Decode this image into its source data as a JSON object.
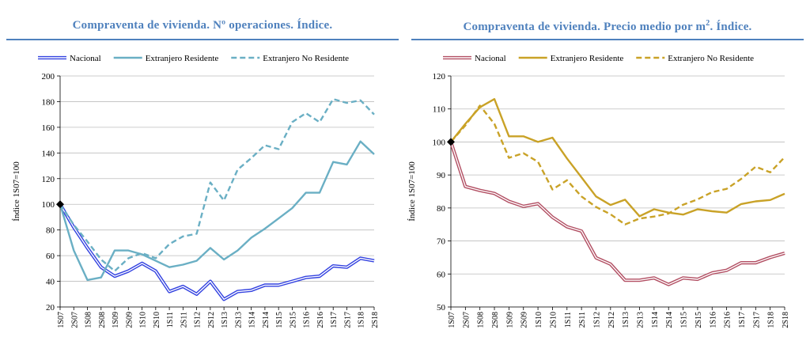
{
  "chart_data": [
    {
      "type": "line",
      "title": "Compraventa de vivienda. Nº operaciones. Índice.",
      "ylabel": "Índice 1S07=100",
      "xlabel": "",
      "ylim": [
        20,
        200
      ],
      "yticks": [
        20,
        40,
        60,
        80,
        100,
        120,
        140,
        160,
        180,
        200
      ],
      "grid": true,
      "legend": "top",
      "base_marker": {
        "x": "1S07",
        "y": 100
      },
      "categories": [
        "1S07",
        "2S07",
        "1S08",
        "2S08",
        "1S09",
        "2S09",
        "1S10",
        "2S10",
        "1S11",
        "2S11",
        "1S12",
        "2S12",
        "1S13",
        "2S13",
        "1S14",
        "2S14",
        "1S15",
        "2S15",
        "1S16",
        "2S16",
        "1S17",
        "2S17",
        "1S18",
        "2S18"
      ],
      "series": [
        {
          "name": "Nacional",
          "color": "#3342e0",
          "style": "double",
          "values": [
            100,
            82,
            66,
            51,
            44,
            48,
            54,
            48,
            32,
            36,
            30,
            40,
            26,
            32,
            33,
            37,
            37,
            40,
            43,
            44,
            52,
            51,
            58,
            56
          ]
        },
        {
          "name": "Extranjero Residente",
          "color": "#6aafc4",
          "style": "solid",
          "values": [
            100,
            64,
            41,
            43,
            64,
            64,
            61,
            56,
            51,
            53,
            56,
            66,
            57,
            64,
            74,
            81,
            89,
            97,
            109,
            109,
            133,
            131,
            149,
            139
          ]
        },
        {
          "name": "Extranjero No Residente",
          "color": "#6aafc4",
          "style": "dashed",
          "values": [
            100,
            84,
            71,
            57,
            48,
            58,
            62,
            58,
            69,
            75,
            77,
            117,
            103,
            127,
            136,
            146,
            143,
            164,
            171,
            164,
            182,
            179,
            181,
            170
          ]
        }
      ]
    },
    {
      "type": "line",
      "title": "Compraventa de vivienda. Precio medio por m",
      "title_sup": "2",
      "title_suffix": ". Índice.",
      "ylabel": "Índice 1S07=100",
      "xlabel": "",
      "ylim": [
        50,
        120
      ],
      "yticks": [
        50,
        60,
        70,
        80,
        90,
        100,
        110,
        120
      ],
      "grid": true,
      "legend": "top",
      "base_marker": {
        "x": "1S07",
        "y": 100
      },
      "categories": [
        "1S07",
        "2S07",
        "1S08",
        "2S08",
        "1S09",
        "2S09",
        "1S10",
        "2S10",
        "1S11",
        "2S11",
        "1S12",
        "2S12",
        "1S13",
        "2S13",
        "1S14",
        "2S14",
        "1S15",
        "2S15",
        "1S16",
        "2S16",
        "1S17",
        "2S17",
        "1S18",
        "2S18"
      ],
      "series": [
        {
          "name": "Nacional",
          "color": "#b24f63",
          "style": "double",
          "values": [
            100,
            86.5,
            85.3,
            84.4,
            82.0,
            80.5,
            81.3,
            77.2,
            74.3,
            73.0,
            64.9,
            63.0,
            58.1,
            58.1,
            58.8,
            56.8,
            58.8,
            58.4,
            60.3,
            61.1,
            63.4,
            63.4,
            65.0,
            66.3
          ]
        },
        {
          "name": "Extranjero Residente",
          "color": "#c9a227",
          "style": "solid",
          "values": [
            100,
            105.5,
            110.5,
            113.0,
            101.7,
            101.7,
            100.0,
            101.3,
            95.0,
            89.3,
            83.5,
            80.9,
            82.5,
            77.5,
            79.6,
            78.6,
            78.0,
            79.6,
            79.0,
            78.6,
            81.2,
            82.0,
            82.4,
            84.3
          ]
        },
        {
          "name": "Extranjero No Residente",
          "color": "#c9a227",
          "style": "dashed",
          "values": [
            100,
            105.0,
            111.0,
            105.5,
            95.2,
            96.6,
            94.0,
            85.6,
            88.4,
            83.5,
            80.3,
            78.1,
            75.0,
            76.8,
            77.4,
            78.3,
            81.0,
            82.6,
            84.8,
            85.8,
            88.8,
            92.5,
            90.8,
            95.4
          ]
        }
      ]
    }
  ]
}
